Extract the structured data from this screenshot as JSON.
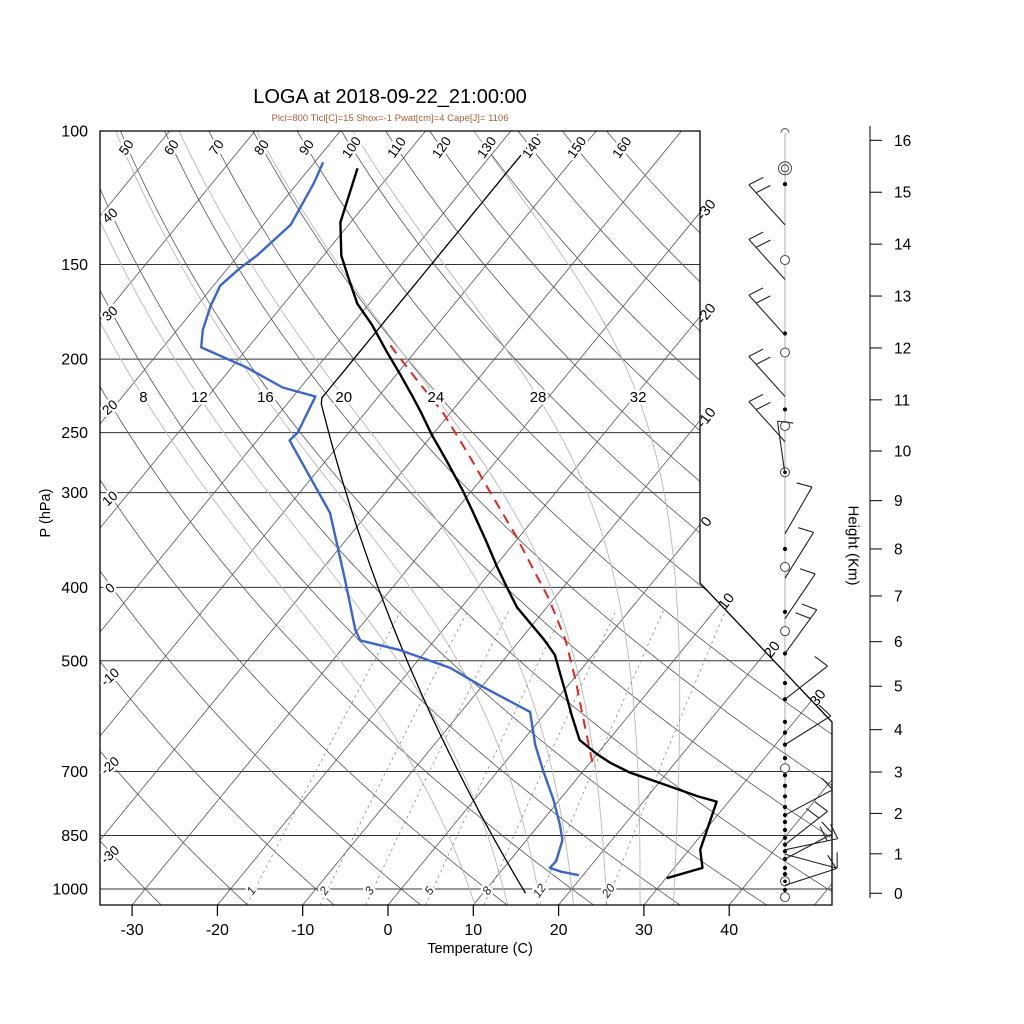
{
  "chart": {
    "title": "LOGA at 2018-09-22_21:00:00",
    "subtitle": "Plcl=800 Tlcl[C]=15 Shox=-1 Pwat[cm]=4 Cape[J]= 1106",
    "xlabel": "Temperature (C)",
    "ylabel_left": "P (hPa)",
    "ylabel_right": "Height (Km)"
  },
  "chart_data": {
    "type": "line",
    "subtype": "skewT-logP-sounding",
    "station": "LOGA",
    "datetime": "2018-09-22_21:00:00",
    "indices": {
      "Plcl": 800,
      "Tlcl_C": 15,
      "Shox": -1,
      "Pwat_cm": 4,
      "Cape_J": 1106
    },
    "pressure_ticks_hpa": [
      100,
      150,
      200,
      250,
      300,
      400,
      500,
      700,
      850,
      1000
    ],
    "temperature_ticks_c": [
      -30,
      -20,
      -10,
      0,
      10,
      20,
      30,
      40
    ],
    "height_ticks_km": [
      0,
      1,
      2,
      3,
      4,
      5,
      6,
      7,
      8,
      9,
      10,
      11,
      12,
      13,
      14,
      15,
      16
    ],
    "isotherms_c": {
      "min": -120,
      "max": 50,
      "step": 10
    },
    "isotherm_right_labels": [
      -30,
      -20,
      -10,
      0,
      10,
      20,
      30
    ],
    "dry_adiabats_c": {
      "min": -30,
      "max": 160,
      "step": 10
    },
    "dry_adiabat_top_labels": [
      50,
      60,
      70,
      80,
      90,
      100,
      110,
      120,
      130,
      140,
      150,
      160
    ],
    "dry_adiabat_left_labels": [
      40,
      30,
      20,
      10,
      0,
      -10,
      -20,
      -30
    ],
    "moist_adiabats_c": [
      8,
      12,
      16,
      20,
      24,
      28,
      32
    ],
    "mixing_ratio_gkg": [
      1,
      2,
      3,
      5,
      8,
      12,
      20
    ],
    "temperature_profile_p_t": [
      [
        112,
        -74.4
      ],
      [
        132,
        -71.2
      ],
      [
        146,
        -67.9
      ],
      [
        157,
        -64.7
      ],
      [
        169,
        -61.4
      ],
      [
        180,
        -57.7
      ],
      [
        196,
        -53.2
      ],
      [
        209,
        -49.7
      ],
      [
        224,
        -46.0
      ],
      [
        236,
        -43.3
      ],
      [
        252,
        -40.0
      ],
      [
        272,
        -35.9
      ],
      [
        298,
        -31.1
      ],
      [
        319,
        -27.7
      ],
      [
        346,
        -23.7
      ],
      [
        376,
        -19.7
      ],
      [
        400,
        -16.6
      ],
      [
        425,
        -13.5
      ],
      [
        469,
        -7.2
      ],
      [
        491,
        -4.5
      ],
      [
        547,
        0.1
      ],
      [
        590,
        3.3
      ],
      [
        636,
        6.6
      ],
      [
        663,
        9.9
      ],
      [
        681,
        12.3
      ],
      [
        702,
        15.6
      ],
      [
        726,
        20.4
      ],
      [
        755,
        25.9
      ],
      [
        767,
        28.6
      ],
      [
        888,
        31.3
      ],
      [
        938,
        33.3
      ],
      [
        968,
        30.1
      ]
    ],
    "dewpoint_profile_p_t": [
      [
        110,
        -79.0
      ],
      [
        117,
        -78.1
      ],
      [
        133,
        -76.8
      ],
      [
        146,
        -77.8
      ],
      [
        152,
        -78.6
      ],
      [
        160,
        -79.2
      ],
      [
        170,
        -78.4
      ],
      [
        183,
        -77.0
      ],
      [
        193,
        -75.5
      ],
      [
        205,
        -68.3
      ],
      [
        218,
        -62.1
      ],
      [
        224,
        -57.4
      ],
      [
        250,
        -56.0
      ],
      [
        256,
        -56.2
      ],
      [
        319,
        -44.5
      ],
      [
        391,
        -36.3
      ],
      [
        455,
        -30.3
      ],
      [
        470,
        -28.7
      ],
      [
        484,
        -23.1
      ],
      [
        511,
        -15.5
      ],
      [
        541,
        -9.9
      ],
      [
        584,
        -1.9
      ],
      [
        646,
        1.9
      ],
      [
        697,
        5.2
      ],
      [
        763,
        9.3
      ],
      [
        824,
        12.5
      ],
      [
        862,
        14.2
      ],
      [
        919,
        15.5
      ],
      [
        938,
        15.4
      ],
      [
        949,
        17.1
      ],
      [
        959,
        19.5
      ]
    ],
    "parcel_profile_p_t": [
      [
        680,
        10.2
      ],
      [
        632,
        7.3
      ],
      [
        583,
        4.1
      ],
      [
        532,
        0.5
      ],
      [
        469,
        -4.7
      ],
      [
        414,
        -10.6
      ],
      [
        376,
        -15.6
      ],
      [
        342,
        -20.5
      ],
      [
        298,
        -28.0
      ],
      [
        269,
        -33.5
      ],
      [
        236,
        -40.7
      ],
      [
        213,
        -47.1
      ],
      [
        190,
        -54.1
      ]
    ],
    "reference_profile": "US standard atmosphere (15C at 1013 hPa, -6.5 K/km to 226 hPa, isothermal -56.5C above)",
    "wind_symbols": [
      {
        "p": 100.5,
        "sym": "arc"
      },
      {
        "p": 112,
        "sym": "dcircle"
      },
      {
        "p": 117.5,
        "sym": "dot"
      },
      {
        "p": 148,
        "sym": "circle"
      },
      {
        "p": 185,
        "sym": "dot"
      },
      {
        "p": 196,
        "sym": "circle"
      },
      {
        "p": 233,
        "sym": "dot"
      },
      {
        "p": 245,
        "sym": "circle"
      },
      {
        "p": 282,
        "sym": "cdot"
      },
      {
        "p": 356,
        "sym": "dot"
      },
      {
        "p": 376,
        "sym": "circle"
      },
      {
        "p": 431,
        "sym": "dot"
      },
      {
        "p": 457,
        "sym": "circle"
      },
      {
        "p": 489,
        "sym": "dot"
      },
      {
        "p": 535,
        "sym": "dot"
      },
      {
        "p": 562,
        "sym": "dot"
      },
      {
        "p": 602,
        "sym": "dot"
      },
      {
        "p": 622,
        "sym": "dot"
      },
      {
        "p": 645,
        "sym": "dot"
      },
      {
        "p": 672,
        "sym": "dot"
      },
      {
        "p": 693,
        "sym": "circle"
      },
      {
        "p": 708,
        "sym": "dot"
      },
      {
        "p": 731,
        "sym": "dot"
      },
      {
        "p": 755,
        "sym": "dot"
      },
      {
        "p": 780,
        "sym": "dot"
      },
      {
        "p": 799,
        "sym": "dot"
      },
      {
        "p": 816,
        "sym": "dot"
      },
      {
        "p": 836,
        "sym": "dot"
      },
      {
        "p": 856,
        "sym": "dot"
      },
      {
        "p": 874,
        "sym": "dot"
      },
      {
        "p": 892,
        "sym": "dot"
      },
      {
        "p": 913,
        "sym": "dot"
      },
      {
        "p": 938,
        "sym": "dot"
      },
      {
        "p": 956,
        "sym": "dot"
      },
      {
        "p": 977,
        "sym": "cdot"
      },
      {
        "p": 1003,
        "sym": "dot"
      },
      {
        "p": 1025,
        "sym": "circle"
      }
    ],
    "wind_barbs": [
      {
        "p": 133,
        "a": -42,
        "t": 2
      },
      {
        "p": 157,
        "a": -42,
        "t": 2
      },
      {
        "p": 186,
        "a": -42,
        "t": 2
      },
      {
        "p": 224,
        "a": -42,
        "t": 2
      },
      {
        "p": 257,
        "a": -42,
        "t": 2
      },
      {
        "p": 284,
        "a": -8,
        "t": 1
      },
      {
        "p": 340,
        "a": 30,
        "t": 1
      },
      {
        "p": 389,
        "a": 32,
        "t": 1
      },
      {
        "p": 440,
        "a": 34,
        "t": 1
      },
      {
        "p": 489,
        "a": 36,
        "t": 2
      },
      {
        "p": 562,
        "a": 52,
        "t": 1
      },
      {
        "p": 645,
        "a": 58,
        "t": 1
      },
      {
        "p": 799,
        "a": 62,
        "t": 1
      },
      {
        "p": 874,
        "a": 52,
        "t": 2
      },
      {
        "p": 888,
        "a": 78,
        "t": 2
      },
      {
        "p": 900,
        "a": 105,
        "t": 1
      },
      {
        "p": 913,
        "a": 62,
        "t": 1
      },
      {
        "p": 989,
        "a": 72,
        "t": 1
      }
    ],
    "colors": {
      "temperature": "#000000",
      "dewpoint": "#3a66cc",
      "parcel": "#e02820",
      "reference": "#000000",
      "subtitle": "#a9603a",
      "grid_dark": "#555555",
      "pressure_line": "#333333",
      "moist_adiabat": "#b8b8b8",
      "mixing_ratio": "#888888"
    },
    "layout": {
      "grid": true,
      "legend": false,
      "x_range_c_at_surface": [
        -35,
        52
      ],
      "p_range_hpa": [
        100,
        1050
      ]
    }
  }
}
